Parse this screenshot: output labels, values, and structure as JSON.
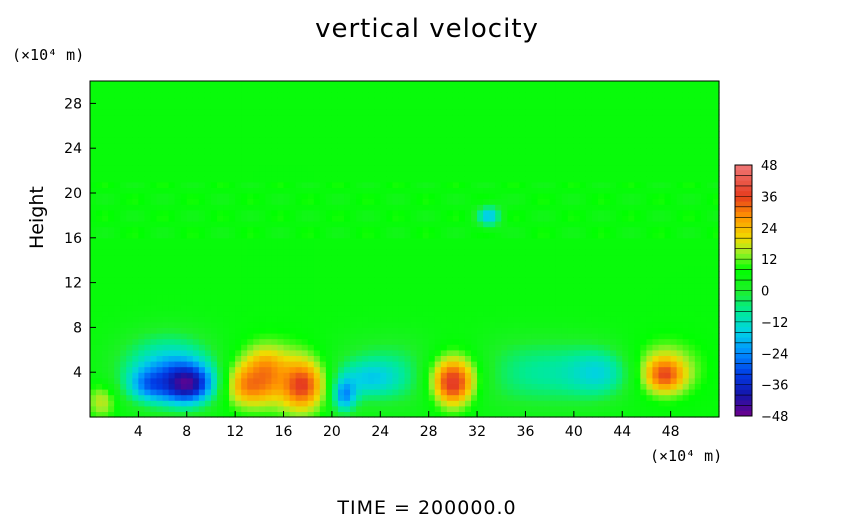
{
  "chart_data": {
    "type": "heatmap",
    "title": "vertical velocity",
    "ylabel": "Height",
    "xlabel": "",
    "x_unit": "(×10⁴ m)",
    "y_unit": "(×10⁴ m)",
    "xlim": [
      0,
      52
    ],
    "ylim": [
      0,
      30
    ],
    "x_ticks": [
      4,
      8,
      12,
      16,
      20,
      24,
      28,
      32,
      36,
      40,
      44,
      48
    ],
    "y_ticks": [
      4,
      8,
      12,
      16,
      20,
      24,
      28
    ],
    "colorbar": {
      "min": -48,
      "max": 48,
      "tick_labels": [
        "48",
        "36",
        "24",
        "12",
        "0",
        "−12",
        "−24",
        "−36",
        "−48"
      ],
      "tick_values": [
        48,
        36,
        24,
        12,
        0,
        -12,
        -24,
        -36,
        -48
      ]
    },
    "background_value": 6,
    "features": [
      {
        "x": 8.0,
        "y": 3.0,
        "value": -40,
        "rx": 2.2,
        "ry": 1.8
      },
      {
        "x": 5.0,
        "y": 3.0,
        "value": -22,
        "rx": 1.8,
        "ry": 1.5
      },
      {
        "x": 6.5,
        "y": 4.5,
        "value": -16,
        "rx": 4.0,
        "ry": 3.0
      },
      {
        "x": 13.0,
        "y": 3.0,
        "value": 30,
        "rx": 2.0,
        "ry": 1.8
      },
      {
        "x": 14.5,
        "y": 4.0,
        "value": 26,
        "rx": 1.6,
        "ry": 2.0
      },
      {
        "x": 17.5,
        "y": 2.8,
        "value": 34,
        "rx": 1.8,
        "ry": 2.2
      },
      {
        "x": 15.5,
        "y": 4.0,
        "value": 16,
        "rx": 4.5,
        "ry": 3.0
      },
      {
        "x": 21.0,
        "y": 2.2,
        "value": -28,
        "rx": 1.0,
        "ry": 1.6
      },
      {
        "x": 23.0,
        "y": 3.5,
        "value": -14,
        "rx": 2.5,
        "ry": 1.5
      },
      {
        "x": 30.0,
        "y": 3.0,
        "value": 34,
        "rx": 1.6,
        "ry": 2.0
      },
      {
        "x": 30.0,
        "y": 4.0,
        "value": 16,
        "rx": 3.0,
        "ry": 3.0
      },
      {
        "x": 42.0,
        "y": 4.0,
        "value": -12,
        "rx": 2.5,
        "ry": 2.0
      },
      {
        "x": 47.5,
        "y": 3.8,
        "value": 32,
        "rx": 1.6,
        "ry": 1.5
      },
      {
        "x": 47.5,
        "y": 4.5,
        "value": 16,
        "rx": 3.0,
        "ry": 2.5
      },
      {
        "x": 1.0,
        "y": 1.5,
        "value": 18,
        "rx": 1.2,
        "ry": 1.5
      },
      {
        "x": 33.0,
        "y": 18.0,
        "value": -16,
        "rx": 1.0,
        "ry": 1.0
      },
      {
        "x": 26.0,
        "y": 4.0,
        "value": -8,
        "rx": 8.0,
        "ry": 3.0
      },
      {
        "x": 38.0,
        "y": 4.0,
        "value": -8,
        "rx": 6.0,
        "ry": 3.0
      }
    ]
  },
  "footer": {
    "time_text": "TIME  =  200000.0"
  }
}
